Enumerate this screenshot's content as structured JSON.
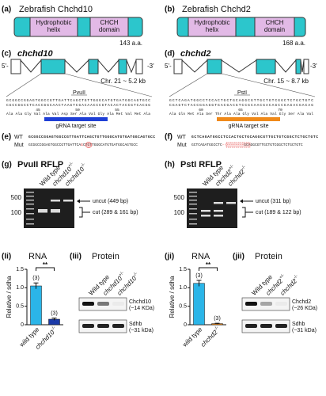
{
  "panels": [
    {
      "protein": {
        "label": "(a)",
        "title": "Zebrafish Chchd10",
        "domains": [
          [
            "Hydrophobic",
            "helix"
          ],
          [
            "CHCH",
            "domain"
          ]
        ],
        "length": "143 a.a."
      },
      "gene": {
        "label": "(c)",
        "name": "chchd10",
        "five": "5'-",
        "three": "-3'",
        "chr": "Chr. 21 ~ 5.2 kb",
        "enzyme": "PvuII",
        "seq_top": "GCGGCCGGAGTGGCCGTTGATTCAGCTGTTGGGCATGTGATGGCAGTGCC",
        "seq_bottom": "CGCCGGCCTCACCGGCAACTAAGTCGACAACCCGTACACTACCGTCACGG",
        "positions": [
          "45",
          "50",
          "55"
        ],
        "aa": "Ala Ala Gly Val Ala Val Asp Ser Ala Val Gly Ala Met Val Met Ala",
        "target": "gRNA target site"
      },
      "mutation": {
        "label": "(e)",
        "wt_name": "WT",
        "mut_name": "Mut",
        "wt": "GCGGCCGGAGTGGCCGTTGATTCAGCTGTTGGGCATGTGATGGCAGTGCC",
        "mut_pre": "GCGGCCGGAGTGGCCGTTGATTCA",
        "mut_del": "G",
        "mut_post": "CTGTTGGGCATGTGATGGCAGTGCC"
      },
      "rflp": {
        "label": "(g)",
        "title": "PvuII RFLP",
        "lanes": [
          {
            "text": "Wild type"
          },
          {
            "text": "chchd10",
            "sup": "+/-"
          },
          {
            "text": "chchd10",
            "sup": "-/-"
          }
        ],
        "ladder": [
          "500",
          "100"
        ],
        "uncut": "uncut (449 bp)",
        "cut": "cut (289 & 161 bp)"
      },
      "expression": {
        "label": "(Ii)",
        "title": "RNA",
        "ylabel": "Relative / sdha",
        "chart": {
          "type": "bar",
          "categories": [
            {
              "text": "wild type"
            },
            {
              "text": "chchd10",
              "sup": "-/-"
            }
          ],
          "values": [
            1.05,
            0.15
          ],
          "errors": [
            0.08,
            0.03
          ],
          "colors": [
            "#2bb5e8",
            "#1b3aa8"
          ],
          "n_labels": [
            "(3)",
            "(3)"
          ],
          "significance": "**",
          "ylim": [
            0,
            1.5
          ],
          "yticks": [
            0,
            0.5,
            {
              "value": 1,
              "label": "1.0"
            },
            1.5
          ]
        },
        "protein_label": "(Iii)",
        "protein_title": "Protein",
        "lanes": [
          {
            "text": "Wild type"
          },
          {
            "text": "chchd10",
            "sup": "+/-"
          },
          {
            "text": "chchd10",
            "sup": "-/-"
          }
        ],
        "bands": [
          {
            "name": "Chchd10",
            "size": "(~14 KDa)"
          },
          {
            "name": "Sdhb",
            "size": "(~31 kDa)"
          }
        ]
      }
    },
    {
      "protein": {
        "label": "(b)",
        "title": "Zebrafish Chchd2",
        "domains": [
          [
            "Hydrophobic",
            "helix"
          ],
          [
            "CHCH",
            "domain"
          ]
        ],
        "length": "168 a.a."
      },
      "gene": {
        "label": "(d)",
        "name": "chchd2",
        "five": "5'-",
        "three": "-3'",
        "chr": "Chr. 15 ~ 8.7 kb",
        "enzyme": "PstI",
        "seq_top": "GCTCAGATGGCCTCCACTGCTGCAGGCGTTGCTGTCGGCTCTGCTGTC",
        "seq_bottom": "CGAGTCTACCGGAGGTGACGACGTCCGCAACGACAGCCGAGACGACAG",
        "positions": [
          "60",
          "65",
          "70"
        ],
        "aa": "Ala Gln Met Ala Ser Thr Ala Ala Gly Val Ala Val Gly Ser Ala Val",
        "target": "gRNA target site"
      },
      "mutation": {
        "label": "(f)",
        "wt_name": "WT",
        "mut_name": "Mut",
        "wt": "GCTCAGATGGCCTCCACTGCTGCAGGCGTTGCTGTCGGCTCTGCTGTC",
        "mut_pre": "GCTCAGATGGCCTC",
        "mut_del": "----------",
        "mut_post": "GCAGGCGTTGCTGTCGGCTCTGCTGTC"
      },
      "rflp": {
        "label": "(h)",
        "title": "PstI RFLP",
        "lanes": [
          {
            "text": "Wild type"
          },
          {
            "text": "chchd2",
            "sup": "+/-"
          },
          {
            "text": "chchd2",
            "sup": "-/-"
          }
        ],
        "ladder": [
          "500",
          "100"
        ],
        "uncut": "uncut (311 bp)",
        "cut": "cut (189 & 122 bp)"
      },
      "expression": {
        "label": "(ji)",
        "title": "RNA",
        "ylabel": "Relative / sdha",
        "chart": {
          "type": "bar",
          "categories": [
            {
              "text": "wild type"
            },
            {
              "text": "chchd2",
              "sup": "-/-"
            }
          ],
          "values": [
            1.12,
            0.03
          ],
          "errors": [
            0.08,
            0.01
          ],
          "colors": [
            "#2bb5e8",
            "#f08a1a"
          ],
          "n_labels": [
            "(3)",
            "(3)"
          ],
          "significance": "**",
          "ylim": [
            0,
            1.5
          ],
          "yticks": [
            0,
            0.5,
            {
              "value": 1,
              "label": "1.0"
            },
            1.5
          ]
        },
        "protein_label": "(jii)",
        "protein_title": "Protein",
        "lanes": [
          {
            "text": "Wild type"
          },
          {
            "text": "chchd2",
            "sup": "+/-"
          },
          {
            "text": "chchd2",
            "sup": "-/-"
          }
        ],
        "bands": [
          {
            "name": "Chchd2",
            "size": "(~26 KDa)"
          },
          {
            "name": "Sdhb",
            "size": "(~31 kDa)"
          }
        ]
      }
    }
  ]
}
